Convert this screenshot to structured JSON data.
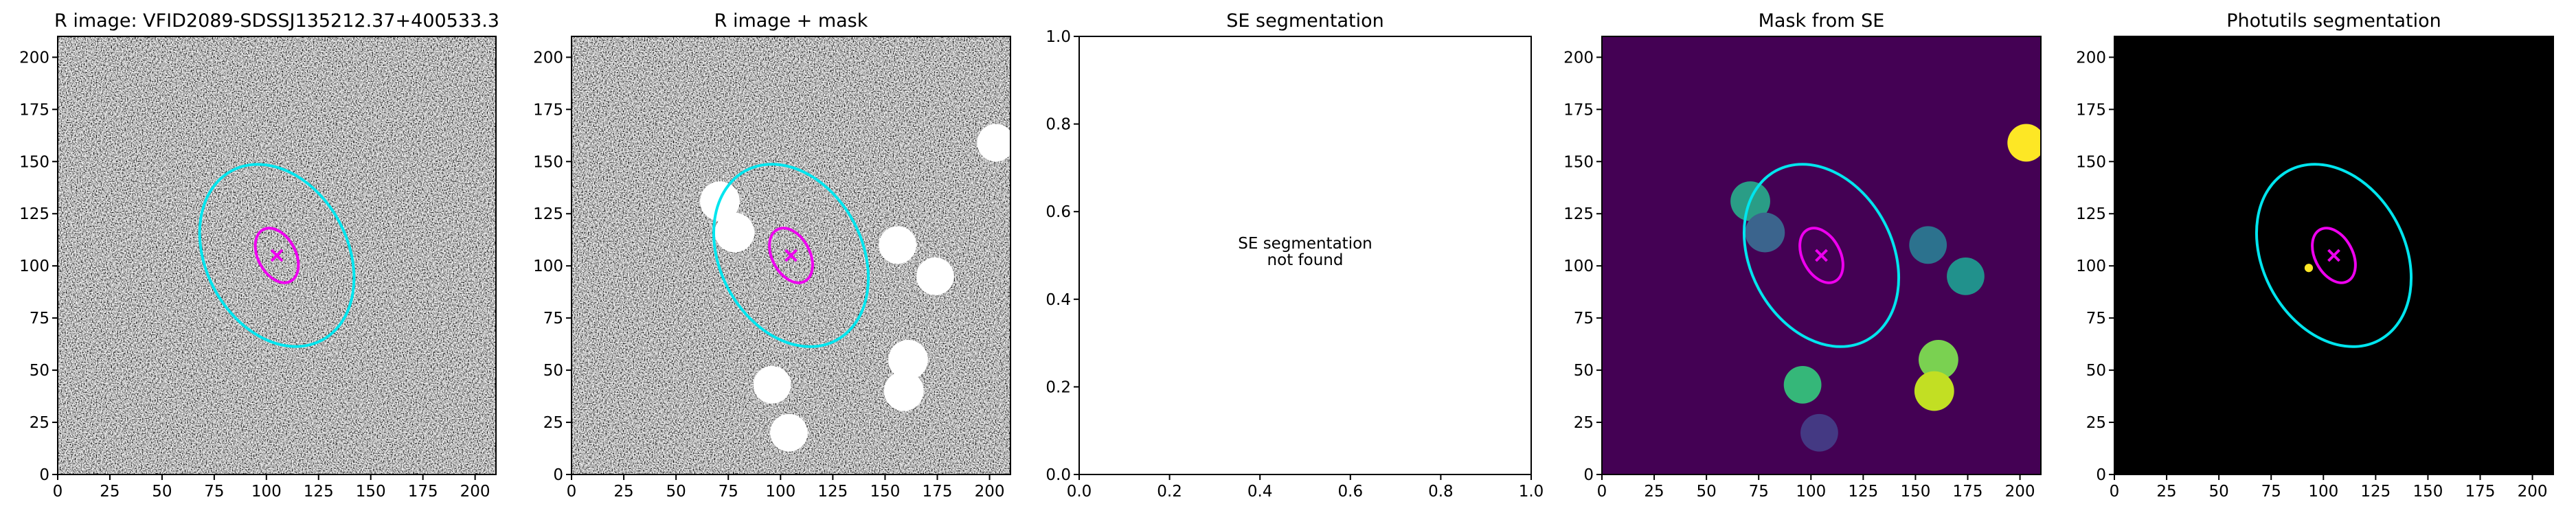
{
  "chart_data": [
    {
      "type": "image",
      "title": "R image: VFID2089-SDSSJ135212.37+400533.3",
      "xlim": [
        0,
        210
      ],
      "ylim": [
        0,
        210
      ],
      "xticks": [
        0,
        25,
        50,
        75,
        100,
        125,
        150,
        175,
        200
      ],
      "yticks": [
        0,
        25,
        50,
        75,
        100,
        125,
        150,
        175,
        200
      ],
      "background": "#808080",
      "noise": true,
      "ellipses": [
        {
          "cx": 105,
          "cy": 105,
          "a": 46,
          "b": 34,
          "angle": -62,
          "color": "#00e5ee"
        },
        {
          "cx": 105,
          "cy": 105,
          "a": 14,
          "b": 9,
          "angle": -62,
          "color": "#ee00ee"
        }
      ],
      "markers": [
        {
          "x": 105,
          "y": 105,
          "color": "#ee00ee"
        }
      ],
      "regions": []
    },
    {
      "type": "image",
      "title": "R image + mask",
      "xlim": [
        0,
        210
      ],
      "ylim": [
        0,
        210
      ],
      "xticks": [
        0,
        25,
        50,
        75,
        100,
        125,
        150,
        175,
        200
      ],
      "yticks": [
        0,
        25,
        50,
        75,
        100,
        125,
        150,
        175,
        200
      ],
      "background": "#808080",
      "noise": true,
      "ellipses": [
        {
          "cx": 105,
          "cy": 105,
          "a": 46,
          "b": 34,
          "angle": -62,
          "color": "#00e5ee"
        },
        {
          "cx": 105,
          "cy": 105,
          "a": 14,
          "b": 9,
          "angle": -62,
          "color": "#ee00ee"
        }
      ],
      "markers": [
        {
          "x": 105,
          "y": 105,
          "color": "#ee00ee"
        }
      ],
      "regions": [
        {
          "x": 71,
          "y": 131,
          "r": 9.5,
          "color": "#ffffff"
        },
        {
          "x": 78,
          "y": 116,
          "r": 9.5,
          "color": "#ffffff"
        },
        {
          "x": 156,
          "y": 110,
          "r": 9,
          "color": "#ffffff"
        },
        {
          "x": 174,
          "y": 95,
          "r": 9,
          "color": "#ffffff"
        },
        {
          "x": 203,
          "y": 159,
          "r": 9,
          "color": "#ffffff"
        },
        {
          "x": 96,
          "y": 43,
          "r": 9,
          "color": "#ffffff"
        },
        {
          "x": 161,
          "y": 55,
          "r": 9.5,
          "color": "#ffffff"
        },
        {
          "x": 159,
          "y": 40,
          "r": 9.5,
          "color": "#ffffff"
        },
        {
          "x": 104,
          "y": 20,
          "r": 9,
          "color": "#ffffff"
        }
      ]
    },
    {
      "type": "empty",
      "title": "SE segmentation",
      "xlim": [
        0,
        1
      ],
      "ylim": [
        0,
        1
      ],
      "xticks": [
        {
          "value": 0,
          "label": "0.0"
        },
        0.2,
        0.4,
        0.6,
        0.8,
        {
          "value": 1,
          "label": "1.0"
        }
      ],
      "yticks": [
        {
          "value": 0,
          "label": "0.0"
        },
        0.2,
        0.4,
        0.6,
        0.8,
        {
          "value": 1,
          "label": "1.0"
        }
      ],
      "background": "#ffffff",
      "noise": false,
      "message": [
        "SE segmentation",
        "not found"
      ]
    },
    {
      "type": "image",
      "title": "Mask from SE",
      "xlim": [
        0,
        210
      ],
      "ylim": [
        0,
        210
      ],
      "xticks": [
        0,
        25,
        50,
        75,
        100,
        125,
        150,
        175,
        200
      ],
      "yticks": [
        0,
        25,
        50,
        75,
        100,
        125,
        150,
        175,
        200
      ],
      "background": "#440154",
      "noise": false,
      "ellipses": [
        {
          "cx": 105,
          "cy": 105,
          "a": 46,
          "b": 34,
          "angle": -62,
          "color": "#00e5ee"
        },
        {
          "cx": 105,
          "cy": 105,
          "a": 14,
          "b": 9,
          "angle": -62,
          "color": "#ee00ee"
        }
      ],
      "markers": [
        {
          "x": 105,
          "y": 105,
          "color": "#ee00ee"
        }
      ],
      "regions": [
        {
          "x": 71,
          "y": 131,
          "r": 9.5,
          "color": "#2a9d86"
        },
        {
          "x": 78,
          "y": 116,
          "r": 9.5,
          "color": "#3b648d"
        },
        {
          "x": 156,
          "y": 110,
          "r": 9,
          "color": "#2c728e"
        },
        {
          "x": 174,
          "y": 95,
          "r": 9,
          "color": "#21918c"
        },
        {
          "x": 203,
          "y": 159,
          "r": 9,
          "color": "#fde725"
        },
        {
          "x": 96,
          "y": 43,
          "r": 9,
          "color": "#35b779"
        },
        {
          "x": 161,
          "y": 55,
          "r": 9.5,
          "color": "#7ad151"
        },
        {
          "x": 159,
          "y": 40,
          "r": 9.5,
          "color": "#c2df23"
        },
        {
          "x": 104,
          "y": 20,
          "r": 9,
          "color": "#443983"
        }
      ]
    },
    {
      "type": "image",
      "title": "Photutils segmentation",
      "xlim": [
        0,
        210
      ],
      "ylim": [
        0,
        210
      ],
      "xticks": [
        0,
        25,
        50,
        75,
        100,
        125,
        150,
        175,
        200
      ],
      "yticks": [
        0,
        25,
        50,
        75,
        100,
        125,
        150,
        175,
        200
      ],
      "background": "#000000",
      "noise": false,
      "ellipses": [
        {
          "cx": 105,
          "cy": 105,
          "a": 46,
          "b": 34,
          "angle": -62,
          "color": "#00e5ee"
        },
        {
          "cx": 105,
          "cy": 105,
          "a": 14,
          "b": 9,
          "angle": -62,
          "color": "#ee00ee"
        }
      ],
      "markers": [
        {
          "x": 105,
          "y": 105,
          "color": "#ee00ee"
        }
      ],
      "regions": [
        {
          "x": 93,
          "y": 99,
          "r": 2,
          "color": "#fde725"
        }
      ]
    }
  ]
}
